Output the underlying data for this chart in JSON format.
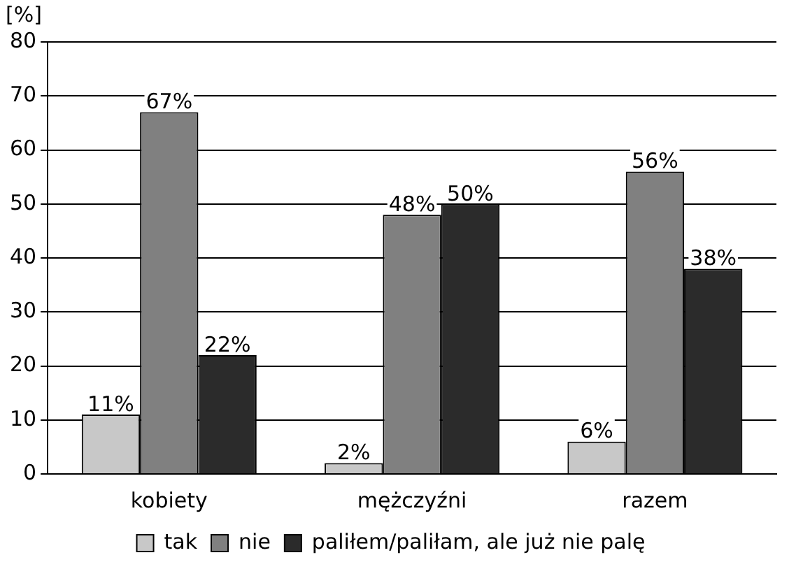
{
  "chart_data": {
    "type": "bar",
    "ylabel": "[%]",
    "categories": [
      "kobiety",
      "mężczyźni",
      "razem"
    ],
    "series": [
      {
        "name": "tak",
        "color": "#c8c8c8",
        "values": [
          11,
          2,
          6
        ],
        "value_labels": [
          "11%",
          "2%",
          "6%"
        ]
      },
      {
        "name": "nie",
        "color": "#808080",
        "values": [
          67,
          48,
          56
        ],
        "value_labels": [
          "67%",
          "48%",
          "56%"
        ]
      },
      {
        "name": "paliłem/paliłam, ale już nie palę",
        "color": "#2b2b2b",
        "values": [
          22,
          50,
          38
        ],
        "value_labels": [
          "22%",
          "50%",
          "38%"
        ]
      }
    ],
    "ylim": [
      0,
      80
    ],
    "yticks": [
      0,
      10,
      20,
      30,
      40,
      50,
      60,
      70,
      80
    ],
    "grid": "y",
    "legend": "bottom"
  }
}
